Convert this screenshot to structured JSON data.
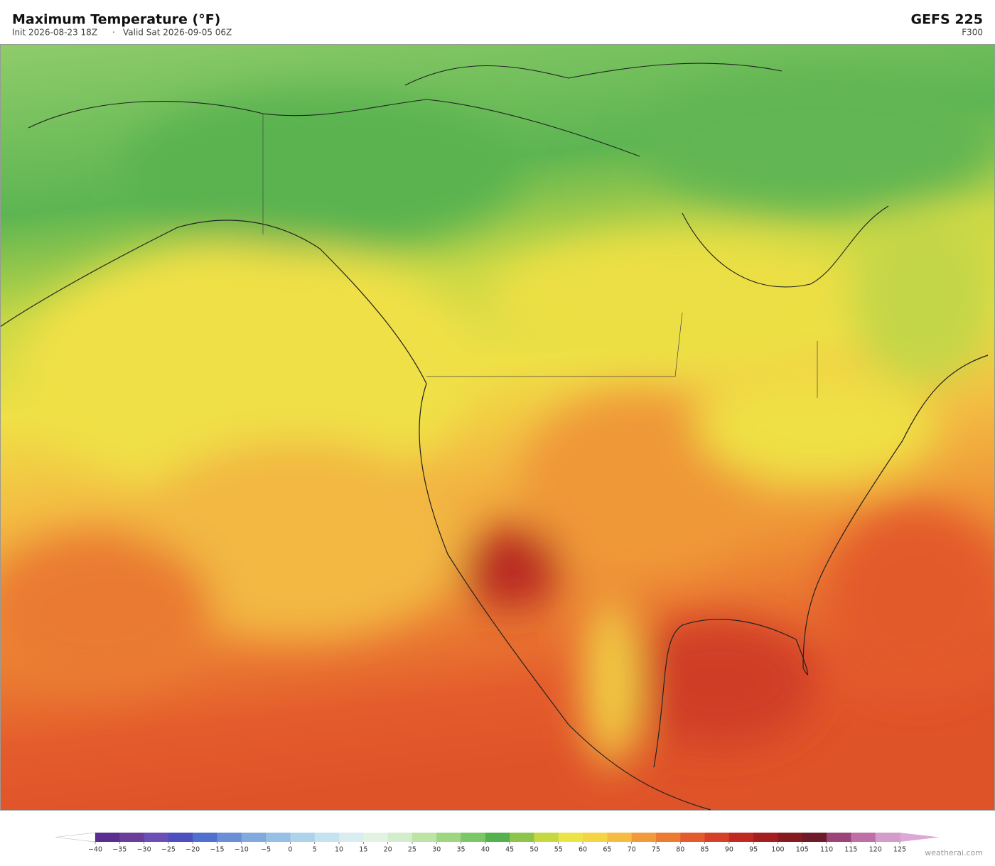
{
  "header": {
    "title": "Maximum Temperature  (°F)",
    "init": "Init 2026-08-23 18Z",
    "separator": "·",
    "valid": "Valid Sat 2026-09-05 06Z",
    "model": "GEFS  225",
    "forecast_hour": "F300"
  },
  "colorbar": {
    "ticks": [
      {
        "value": -40,
        "label": "−40"
      },
      {
        "value": -35,
        "label": "−35"
      },
      {
        "value": -30,
        "label": "−30"
      },
      {
        "value": -25,
        "label": "−25"
      },
      {
        "value": -20,
        "label": "−20"
      },
      {
        "value": -15,
        "label": "−15"
      },
      {
        "value": -10,
        "label": "−10"
      },
      {
        "value": -5,
        "label": "−5"
      },
      0,
      5,
      10,
      15,
      20,
      25,
      30,
      35,
      40,
      45,
      50,
      55,
      60,
      65,
      70,
      75,
      80,
      85,
      90,
      95,
      100,
      105,
      110,
      115,
      120,
      125
    ],
    "colors": [
      "#5a2d91",
      "#6a3d9a",
      "#6b4fb5",
      "#4d4fc0",
      "#5070d0",
      "#6a8fd6",
      "#80a9dc",
      "#95bfe3",
      "#add3ea",
      "#c4e2ef",
      "#d9ecf0",
      "#e4f2e4",
      "#d2eccc",
      "#bde3a5",
      "#9dd580",
      "#7cc765",
      "#55b04e",
      "#8cc54a",
      "#c6d840",
      "#ece446",
      "#f5d444",
      "#f4bd42",
      "#f19a3a",
      "#ec7b30",
      "#e35a2c",
      "#d43f27",
      "#be2a22",
      "#a41e1f",
      "#861a1e",
      "#6e1a2a",
      "#9c4378",
      "#bd6fa6",
      "#d49cc8"
    ],
    "under_color": "#ffffff",
    "over_color": "#dca8d6"
  },
  "footer": {
    "credit": "weatherai.com"
  }
}
